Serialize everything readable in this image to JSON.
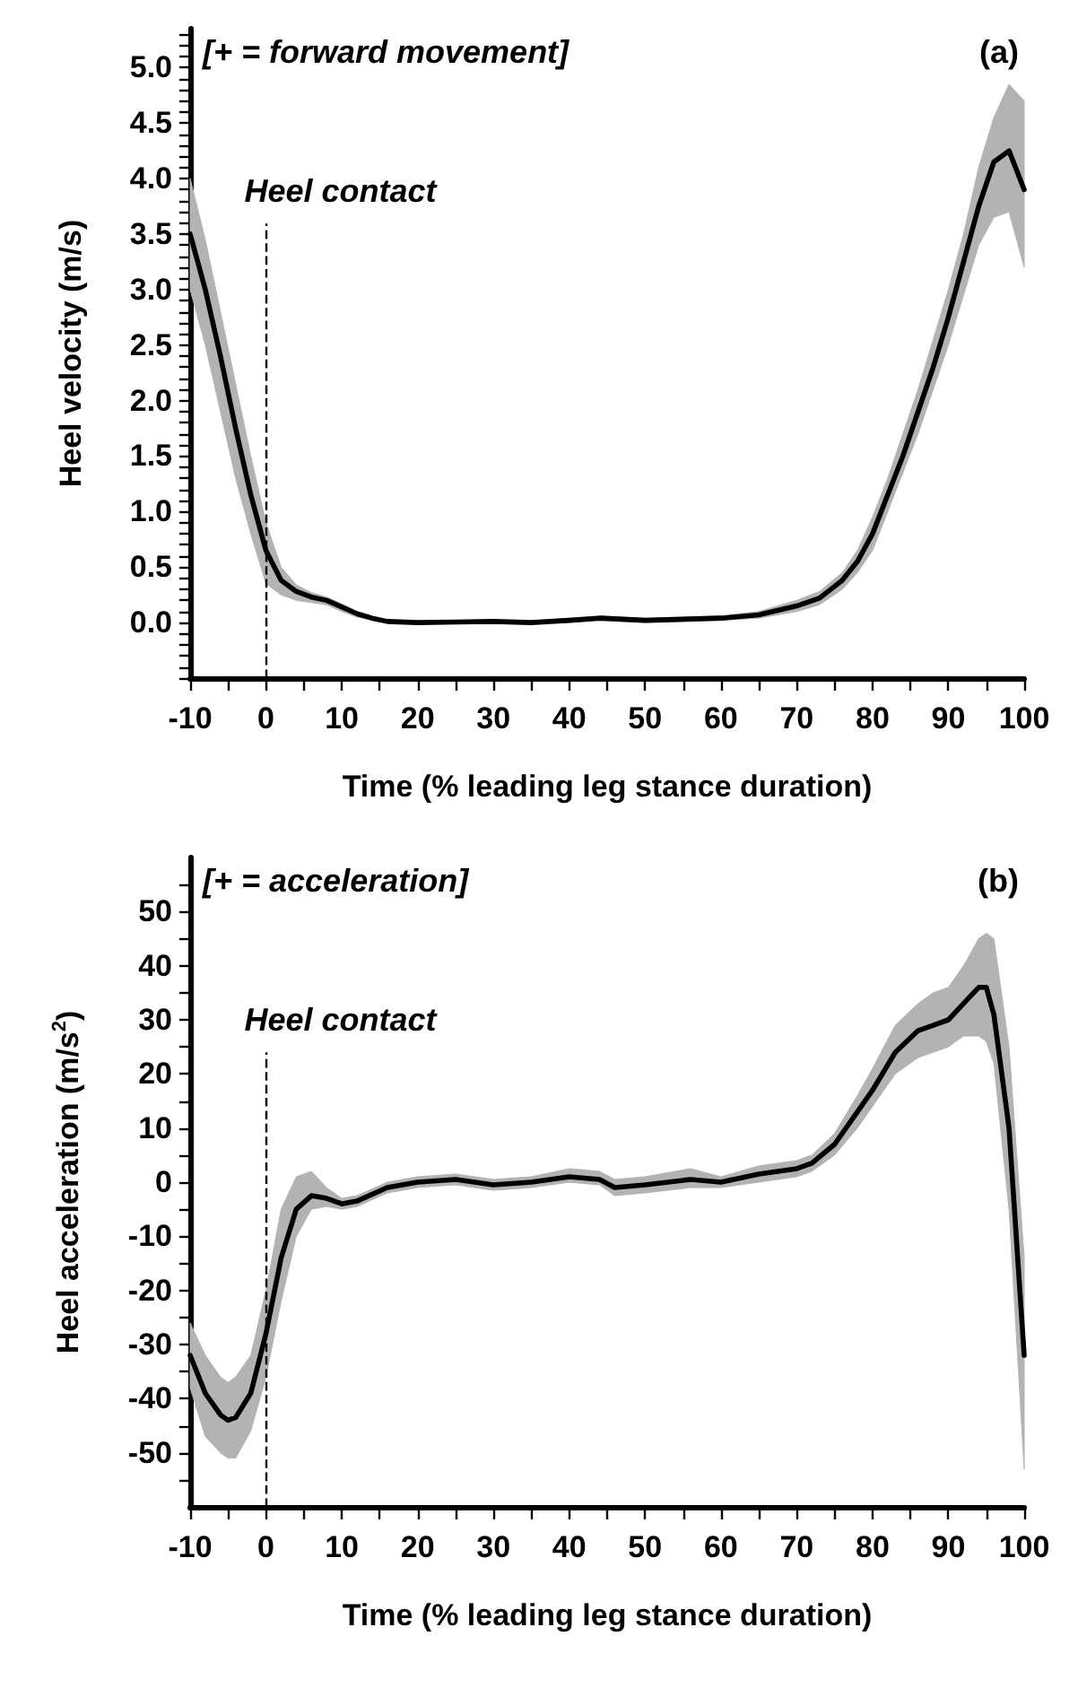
{
  "chart_data": [
    {
      "type": "line",
      "xlabel": "Time (% leading leg stance duration)",
      "ylabel": "Heel velocity (m/s)",
      "annotations": [
        "[+ = forward movement]",
        "(a)"
      ],
      "x": [
        -10,
        -8,
        -6,
        -4,
        -2,
        0,
        2,
        4,
        6,
        8,
        10,
        12,
        14,
        16,
        20,
        30,
        35,
        40,
        44,
        50,
        60,
        65,
        70,
        73,
        76,
        78,
        80,
        82,
        84,
        86,
        88,
        90,
        92,
        94,
        96,
        98,
        100
      ],
      "series": [
        {
          "color": "#000000",
          "values": [
            3.5,
            3.0,
            2.4,
            1.75,
            1.15,
            0.65,
            0.38,
            0.28,
            0.23,
            0.2,
            0.14,
            0.08,
            0.04,
            0.01,
            0,
            0.01,
            0,
            0.02,
            0.04,
            0.02,
            0.04,
            0.07,
            0.15,
            0.22,
            0.38,
            0.55,
            0.8,
            1.15,
            1.5,
            1.9,
            2.3,
            2.75,
            3.25,
            3.75,
            4.15,
            4.25,
            3.9
          ],
          "lower": [
            3.0,
            2.5,
            1.9,
            1.3,
            0.8,
            0.35,
            0.25,
            0.2,
            0.18,
            0.16,
            0.1,
            0.05,
            0.02,
            0,
            0,
            0,
            0,
            0,
            0.02,
            0,
            0.02,
            0.04,
            0.1,
            0.16,
            0.3,
            0.45,
            0.65,
            1.0,
            1.35,
            1.7,
            2.1,
            2.5,
            2.95,
            3.4,
            3.65,
            3.7,
            3.2
          ],
          "upper": [
            4.0,
            3.45,
            2.8,
            2.15,
            1.5,
            0.9,
            0.5,
            0.34,
            0.27,
            0.23,
            0.17,
            0.1,
            0.05,
            0.02,
            0.01,
            0.02,
            0.01,
            0.04,
            0.06,
            0.04,
            0.06,
            0.1,
            0.2,
            0.28,
            0.45,
            0.65,
            0.95,
            1.3,
            1.7,
            2.1,
            2.55,
            3.0,
            3.5,
            4.1,
            4.55,
            4.85,
            4.7
          ]
        }
      ],
      "xlim": [
        -10,
        100
      ],
      "xticks": [
        -10,
        {
          "value": -5,
          "label": null
        },
        0,
        {
          "value": 5,
          "label": null
        },
        10,
        {
          "value": 15,
          "label": null
        },
        20,
        {
          "value": 25,
          "label": null
        },
        30,
        {
          "value": 35,
          "label": null
        },
        40,
        {
          "value": 45,
          "label": null
        },
        50,
        {
          "value": 55,
          "label": null
        },
        60,
        {
          "value": 65,
          "label": null
        },
        70,
        {
          "value": 75,
          "label": null
        },
        80,
        {
          "value": 85,
          "label": null
        },
        90,
        {
          "value": 95,
          "label": null
        },
        100
      ],
      "ylim": [
        -0.5,
        5.35
      ],
      "yticks": [
        {
          "value": -0.5,
          "label": null
        },
        {
          "value": -0.4,
          "label": null
        },
        {
          "value": -0.3,
          "label": null
        },
        {
          "value": -0.2,
          "label": null
        },
        {
          "value": -0.1,
          "label": null
        },
        {
          "value": 0,
          "label": "0.0"
        },
        {
          "value": 0.1,
          "label": null
        },
        {
          "value": 0.2,
          "label": null
        },
        {
          "value": 0.3,
          "label": null
        },
        {
          "value": 0.4,
          "label": null
        },
        {
          "value": 0.5,
          "label": "0.5"
        },
        {
          "value": 0.6,
          "label": null
        },
        {
          "value": 0.7,
          "label": null
        },
        {
          "value": 0.8,
          "label": null
        },
        {
          "value": 0.9,
          "label": null
        },
        {
          "value": 1,
          "label": "1.0"
        },
        {
          "value": 1.1,
          "label": null
        },
        {
          "value": 1.2,
          "label": null
        },
        {
          "value": 1.3,
          "label": null
        },
        {
          "value": 1.4,
          "label": null
        },
        {
          "value": 1.5,
          "label": "1.5"
        },
        {
          "value": 1.6,
          "label": null
        },
        {
          "value": 1.7,
          "label": null
        },
        {
          "value": 1.8,
          "label": null
        },
        {
          "value": 1.9,
          "label": null
        },
        {
          "value": 2,
          "label": "2.0"
        },
        {
          "value": 2.1,
          "label": null
        },
        {
          "value": 2.2,
          "label": null
        },
        {
          "value": 2.3,
          "label": null
        },
        {
          "value": 2.4,
          "label": null
        },
        {
          "value": 2.5,
          "label": "2.5"
        },
        {
          "value": 2.6,
          "label": null
        },
        {
          "value": 2.7,
          "label": null
        },
        {
          "value": 2.8,
          "label": null
        },
        {
          "value": 2.9,
          "label": null
        },
        {
          "value": 3,
          "label": "3.0"
        },
        {
          "value": 3.1,
          "label": null
        },
        {
          "value": 3.2,
          "label": null
        },
        {
          "value": 3.3,
          "label": null
        },
        {
          "value": 3.4,
          "label": null
        },
        {
          "value": 3.5,
          "label": "3.5"
        },
        {
          "value": 3.6,
          "label": null
        },
        {
          "value": 3.7,
          "label": null
        },
        {
          "value": 3.8,
          "label": null
        },
        {
          "value": 3.9,
          "label": null
        },
        {
          "value": 4,
          "label": "4.0"
        },
        {
          "value": 4.1,
          "label": null
        },
        {
          "value": 4.2,
          "label": null
        },
        {
          "value": 4.3,
          "label": null
        },
        {
          "value": 4.4,
          "label": null
        },
        {
          "value": 4.5,
          "label": "4.5"
        },
        {
          "value": 4.6,
          "label": null
        },
        {
          "value": 4.7,
          "label": null
        },
        {
          "value": 4.8,
          "label": null
        },
        {
          "value": 4.9,
          "label": null
        },
        {
          "value": 5,
          "label": "5.0"
        },
        {
          "value": 5.1,
          "label": null
        },
        {
          "value": 5.2,
          "label": null
        },
        {
          "value": 5.3,
          "label": null
        }
      ],
      "ref_lines": [
        {
          "axis": "x",
          "value": 0,
          "label": "Heel contact",
          "line_style": "dashed"
        }
      ]
    },
    {
      "type": "line",
      "xlabel": "Time (% leading leg stance duration)",
      "ylabel": "Heel acceleration (m/s$^{2}$)",
      "annotations": [
        "[+ = acceleration]",
        "(b)"
      ],
      "x": [
        -10,
        -8,
        -6,
        -5,
        -4,
        -2,
        0,
        2,
        4,
        6,
        8,
        10,
        12,
        16,
        20,
        25,
        30,
        35,
        40,
        44,
        46,
        50,
        56,
        60,
        65,
        70,
        72,
        75,
        78,
        80,
        83,
        86,
        88,
        90,
        92,
        94,
        95,
        96,
        98,
        100
      ],
      "series": [
        {
          "color": "#000000",
          "values": [
            -32,
            -39,
            -43,
            -44,
            -43.5,
            -39,
            -28,
            -14,
            -5,
            -2.5,
            -3,
            -4,
            -3.5,
            -1,
            0,
            0.5,
            -0.5,
            0,
            1,
            0.5,
            -1,
            -0.5,
            0.5,
            0,
            1.5,
            2.5,
            3.5,
            7,
            13,
            17,
            24,
            28,
            29,
            30,
            33,
            36,
            36,
            31,
            10,
            -32
          ],
          "lower": [
            -38,
            -47,
            -50,
            -51,
            -51,
            -46,
            -36,
            -22,
            -10,
            -5,
            -4.5,
            -5,
            -4.5,
            -2,
            -1,
            -0.5,
            -1.5,
            -1,
            0,
            -0.5,
            -2.5,
            -2,
            -1,
            -1,
            0,
            1,
            2,
            5,
            10,
            14,
            20,
            23,
            24,
            25,
            27,
            27,
            26,
            22,
            -5,
            -53
          ],
          "upper": [
            -26,
            -32,
            -36,
            -37,
            -36,
            -32,
            -20,
            -5,
            1,
            2,
            -1,
            -3,
            -2.5,
            0,
            1,
            1.5,
            0.5,
            1,
            2.5,
            2,
            0.5,
            1,
            2.5,
            1,
            3,
            4,
            5,
            9,
            16,
            21,
            29,
            33,
            35,
            36,
            40,
            45,
            46,
            45,
            25,
            -14
          ]
        }
      ],
      "xlim": [
        -10,
        100
      ],
      "xticks": [
        -10,
        {
          "value": -5,
          "label": null
        },
        0,
        {
          "value": 5,
          "label": null
        },
        10,
        {
          "value": 15,
          "label": null
        },
        20,
        {
          "value": 25,
          "label": null
        },
        30,
        {
          "value": 35,
          "label": null
        },
        40,
        {
          "value": 45,
          "label": null
        },
        50,
        {
          "value": 55,
          "label": null
        },
        60,
        {
          "value": 65,
          "label": null
        },
        70,
        {
          "value": 75,
          "label": null
        },
        80,
        {
          "value": 85,
          "label": null
        },
        90,
        {
          "value": 95,
          "label": null
        },
        100
      ],
      "ylim": [
        -60,
        60
      ],
      "yticks": [
        {
          "value": -55,
          "label": null
        },
        -50,
        {
          "value": -45,
          "label": null
        },
        -40,
        {
          "value": -35,
          "label": null
        },
        -30,
        {
          "value": -25,
          "label": null
        },
        -20,
        {
          "value": -15,
          "label": null
        },
        -10,
        {
          "value": -5,
          "label": null
        },
        0,
        {
          "value": 5,
          "label": null
        },
        10,
        {
          "value": 15,
          "label": null
        },
        20,
        {
          "value": 25,
          "label": null
        },
        30,
        {
          "value": 35,
          "label": null
        },
        40,
        {
          "value": 45,
          "label": null
        },
        50,
        {
          "value": 55,
          "label": null
        }
      ],
      "ref_lines": [
        {
          "axis": "x",
          "value": 0,
          "label": "Heel contact",
          "line_style": "dashed"
        }
      ]
    }
  ]
}
